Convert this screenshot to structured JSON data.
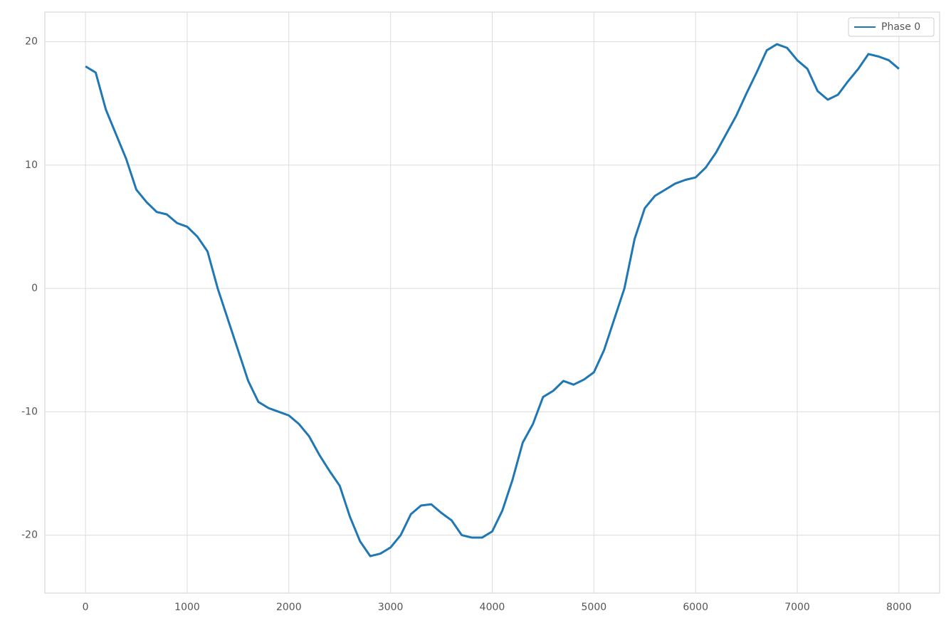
{
  "chart_data": {
    "type": "line",
    "x": [
      0,
      100,
      200,
      300,
      400,
      500,
      600,
      700,
      800,
      900,
      1000,
      1100,
      1200,
      1300,
      1400,
      1500,
      1600,
      1700,
      1800,
      1900,
      2000,
      2100,
      2200,
      2300,
      2400,
      2500,
      2600,
      2700,
      2800,
      2900,
      3000,
      3100,
      3200,
      3300,
      3400,
      3500,
      3600,
      3700,
      3800,
      3900,
      4000,
      4100,
      4200,
      4300,
      4400,
      4500,
      4600,
      4700,
      4800,
      4900,
      5000,
      5100,
      5200,
      5300,
      5400,
      5500,
      5600,
      5700,
      5800,
      5900,
      6000,
      6100,
      6200,
      6300,
      6400,
      6500,
      6600,
      6700,
      6800,
      6900,
      7000,
      7100,
      7200,
      7300,
      7400,
      7500,
      7600,
      7700,
      7800,
      7900,
      8000
    ],
    "series": [
      {
        "name": "Phase 0",
        "color": "#1f77b4",
        "values": [
          18,
          17.5,
          14.5,
          12.5,
          10.5,
          8,
          7,
          6.2,
          6,
          5.3,
          5,
          4.2,
          3,
          0,
          -2.5,
          -5,
          -7.5,
          -9.2,
          -9.7,
          -10,
          -10.3,
          -11,
          -12,
          -13.5,
          -14.8,
          -16,
          -18.5,
          -20.5,
          -21.7,
          -21.5,
          -21,
          -20,
          -18.3,
          -17.6,
          -17.5,
          -18.2,
          -18.8,
          -20,
          -20.2,
          -20.2,
          -19.7,
          -18,
          -15.5,
          -12.5,
          -11,
          -8.8,
          -8.3,
          -7.5,
          -7.8,
          -7.4,
          -6.8,
          -5,
          -2.5,
          0,
          4,
          6.5,
          7.5,
          8,
          8.5,
          8.8,
          9,
          9.8,
          11,
          12.5,
          14,
          15.8,
          17.5,
          19.3,
          19.8,
          19.5,
          18.5,
          17.8,
          16,
          15.3,
          15.7,
          16.8,
          17.8,
          19,
          18.8,
          18.5,
          17.8
        ]
      }
    ],
    "xlim": [
      -400,
      8400
    ],
    "ylim": [
      -24.7,
      22.4
    ],
    "xticks": [
      0,
      1000,
      2000,
      3000,
      4000,
      5000,
      6000,
      7000,
      8000
    ],
    "yticks": [
      -20,
      -10,
      0,
      10,
      20
    ],
    "grid": true,
    "legend": "upper right"
  }
}
